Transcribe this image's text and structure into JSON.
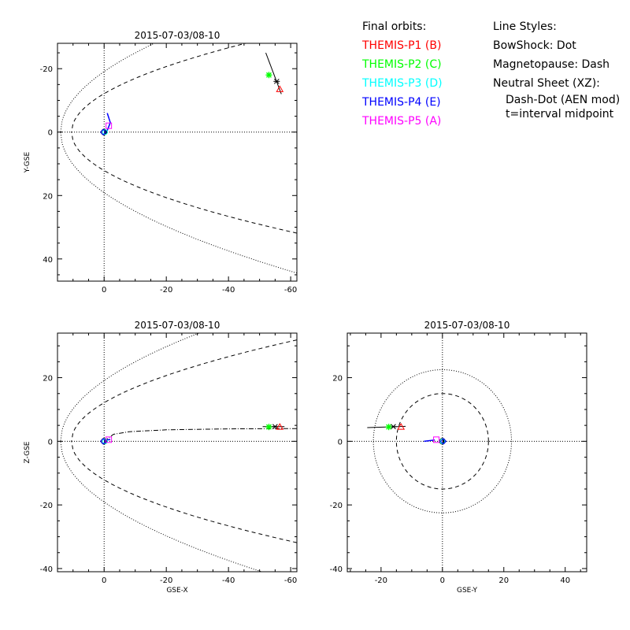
{
  "legend": {
    "orbits_title": "Final orbits:",
    "probes": [
      {
        "label": "THEMIS-P1 (B)",
        "color": "#ff0000"
      },
      {
        "label": "THEMIS-P2 (C)",
        "color": "#00ff00"
      },
      {
        "label": "THEMIS-P3 (D)",
        "color": "#00ffff"
      },
      {
        "label": "THEMIS-P4 (E)",
        "color": "#0000ff"
      },
      {
        "label": "THEMIS-P5 (A)",
        "color": "#ff00ff"
      }
    ],
    "styles_title": "Line Styles:",
    "styles": [
      "BowShock: Dot",
      "Magnetopause: Dash",
      "Neutral Sheet (XZ):",
      "Dash-Dot (AEN mod)",
      "t=interval midpoint"
    ]
  },
  "chart_data": [
    {
      "type": "line",
      "title": "2015-07-03/08-10",
      "xlabel": "",
      "ylabel": "Y-GSE",
      "xlim": [
        15,
        -62
      ],
      "ylim": [
        47,
        -28
      ],
      "xticks": [
        0,
        -20,
        -40,
        -60
      ],
      "xtick_labels": [
        "0",
        "-20",
        "-40",
        "-60"
      ],
      "yticks": [
        -20,
        0,
        20,
        40
      ],
      "ytick_labels": [
        "-20",
        "0",
        "20",
        "40"
      ],
      "zero_lines": true,
      "bow_shock": {
        "x0": 14,
        "k": 26,
        "range": [
          -62,
          14
        ]
      },
      "magnetopause": {
        "x0": 10.5,
        "k": 14,
        "range": [
          -62,
          10.5
        ]
      },
      "orbits": [
        {
          "probe": "THEMIS-P1 (B)",
          "color": "#ff0000",
          "symbol": "triangle",
          "end": [
            -56.5,
            -13.5
          ]
        },
        {
          "probe": "THEMIS-P2 (C)",
          "color": "#00ff00",
          "symbol": "asterisk",
          "end": [
            -53,
            -18
          ]
        },
        {
          "probe": "THEMIS-P3 (D)",
          "color": "#00ffff",
          "symbol": "circle",
          "end": [
            -0.3,
            0
          ]
        },
        {
          "probe": "THEMIS-P4 (E)",
          "color": "#0000ff",
          "symbol": "diamond",
          "end": [
            0.3,
            0
          ]
        },
        {
          "probe": "THEMIS-P5 (A)",
          "color": "#ff00ff",
          "symbol": "square",
          "end": [
            -1.5,
            -2
          ]
        }
      ],
      "black_track": {
        "start": [
          -52,
          -25
        ],
        "mid": [
          -55.5,
          -16
        ],
        "end": [
          -57,
          -12
        ]
      },
      "p4_track": [
        [
          -1,
          -6
        ],
        [
          -2,
          -3
        ],
        [
          -1,
          -0.5
        ]
      ]
    },
    {
      "type": "line",
      "title": "2015-07-03/08-10",
      "xlabel": "GSE-X",
      "ylabel": "Z-GSE",
      "xlim": [
        15,
        -62
      ],
      "ylim": [
        -41,
        34
      ],
      "xticks": [
        0,
        -20,
        -40,
        -60
      ],
      "xtick_labels": [
        "0",
        "-20",
        "-40",
        "-60"
      ],
      "yticks": [
        20,
        0,
        -20,
        -40
      ],
      "ytick_labels": [
        "20",
        "0",
        "-20",
        "-40"
      ],
      "zero_lines": true,
      "bow_shock": {
        "x0": 14,
        "k": 26,
        "range": [
          -62,
          14
        ]
      },
      "magnetopause": {
        "x0": 10.5,
        "k": 14,
        "range": [
          -62,
          10.5
        ]
      },
      "neutral_sheet": [
        [
          0,
          0
        ],
        [
          -3,
          2.2
        ],
        [
          -8,
          3
        ],
        [
          -20,
          3.6
        ],
        [
          -40,
          3.9
        ],
        [
          -62,
          4
        ]
      ],
      "orbits": [
        {
          "probe": "THEMIS-P1 (B)",
          "color": "#ff0000",
          "symbol": "triangle",
          "end": [
            -56.5,
            4.5
          ]
        },
        {
          "probe": "THEMIS-P2 (C)",
          "color": "#00ff00",
          "symbol": "asterisk",
          "end": [
            -53,
            4.5
          ]
        },
        {
          "probe": "THEMIS-P3 (D)",
          "color": "#00ffff",
          "symbol": "circle",
          "end": [
            -0.3,
            0
          ]
        },
        {
          "probe": "THEMIS-P4 (E)",
          "color": "#0000ff",
          "symbol": "diamond",
          "end": [
            0.3,
            0
          ]
        },
        {
          "probe": "THEMIS-P5 (A)",
          "color": "#ff00ff",
          "symbol": "square",
          "end": [
            -1.5,
            0.5
          ]
        }
      ],
      "black_track": {
        "start": [
          -51,
          4.6
        ],
        "mid": [
          -55,
          4.6
        ],
        "end": [
          -58,
          4.6
        ]
      },
      "p4_track": [
        [
          0,
          0.2
        ],
        [
          -2,
          0.6
        ]
      ]
    },
    {
      "type": "line",
      "title": "2015-07-03/08-10",
      "xlabel": "GSE-Y",
      "ylabel": "",
      "xlim": [
        -31,
        47
      ],
      "ylim": [
        -41,
        34
      ],
      "xticks": [
        -20,
        0,
        20,
        40
      ],
      "xtick_labels": [
        "-20",
        "0",
        "20",
        "40"
      ],
      "yticks": [
        20,
        0,
        -20,
        -40
      ],
      "ytick_labels": [
        "20",
        "0",
        "-20",
        "-40"
      ],
      "zero_lines": true,
      "bow_shock_circle_radius": 22.5,
      "magnetopause_circle_radius": 15,
      "orbits": [
        {
          "probe": "THEMIS-P1 (B)",
          "color": "#ff0000",
          "symbol": "triangle",
          "end": [
            -13.5,
            4.5
          ]
        },
        {
          "probe": "THEMIS-P2 (C)",
          "color": "#00ff00",
          "symbol": "asterisk",
          "end": [
            -17.5,
            4.5
          ]
        },
        {
          "probe": "THEMIS-P3 (D)",
          "color": "#00ffff",
          "symbol": "circle",
          "end": [
            0,
            0
          ]
        },
        {
          "probe": "THEMIS-P4 (E)",
          "color": "#0000ff",
          "symbol": "diamond",
          "end": [
            0.3,
            0
          ]
        },
        {
          "probe": "THEMIS-P5 (A)",
          "color": "#ff00ff",
          "symbol": "square",
          "end": [
            -2,
            0.5
          ]
        }
      ],
      "black_track": {
        "start": [
          -24.5,
          4.3
        ],
        "mid": [
          -16,
          4.6
        ],
        "end": [
          -12,
          4.7
        ]
      },
      "p4_track": [
        [
          -6,
          0
        ],
        [
          -2.5,
          0.4
        ]
      ]
    }
  ]
}
